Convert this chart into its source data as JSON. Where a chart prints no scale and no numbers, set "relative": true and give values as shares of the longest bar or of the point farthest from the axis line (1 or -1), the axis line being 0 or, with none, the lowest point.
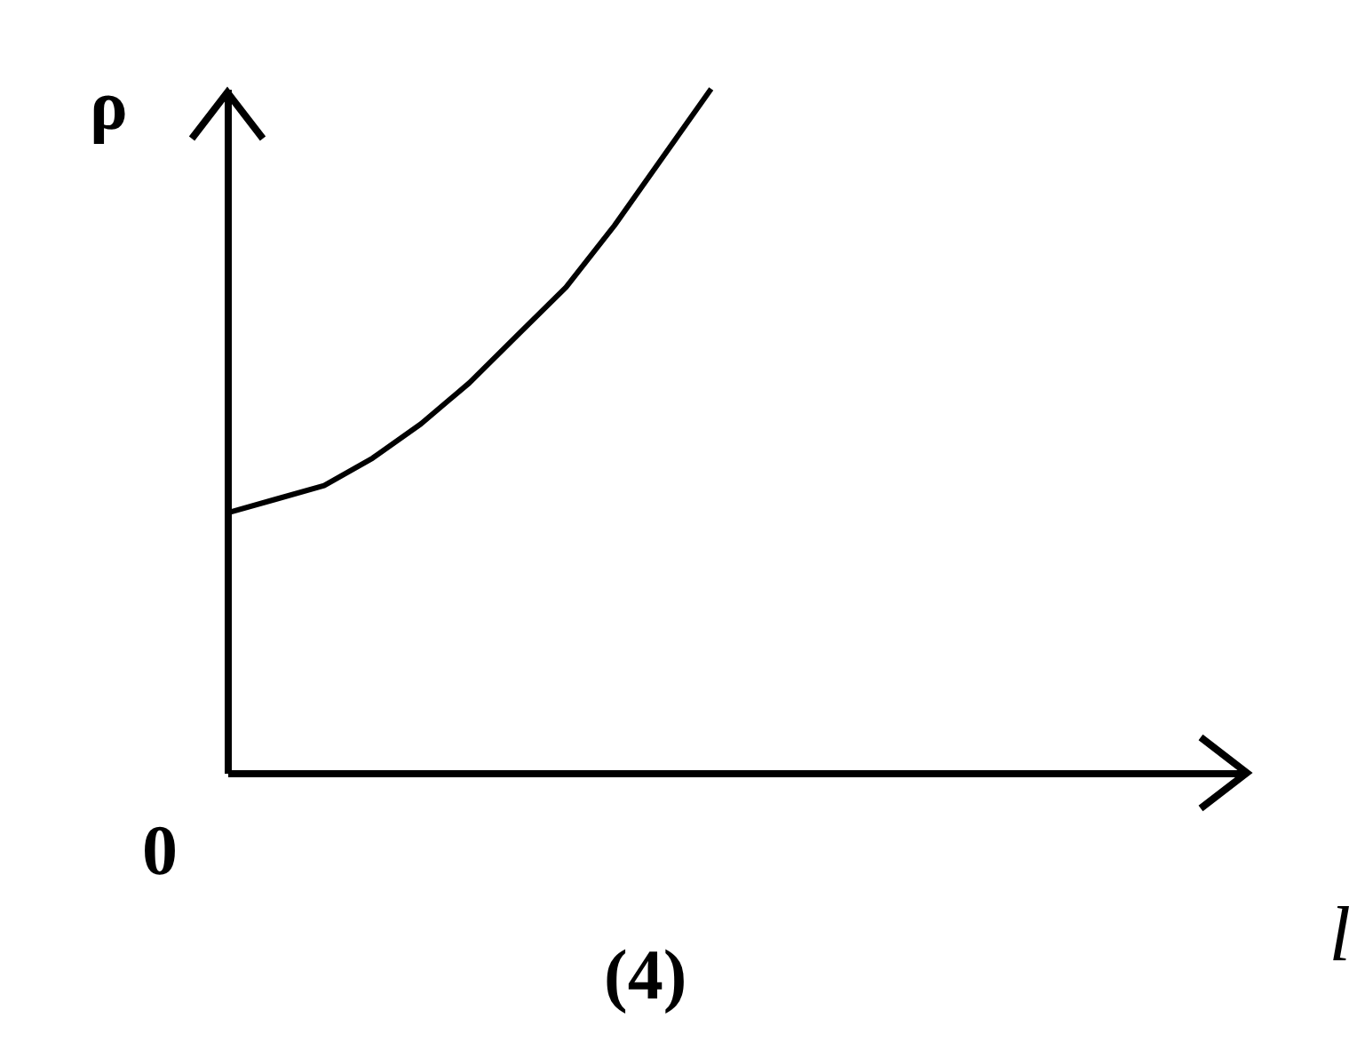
{
  "chart_data": {
    "type": "line",
    "relative": true,
    "xlabel": "l",
    "ylabel": "ρ",
    "annotations": [
      "0",
      "(4)"
    ],
    "categories": [
      null,
      null,
      null,
      null,
      null,
      null,
      null,
      null,
      null,
      null,
      null,
      null,
      null,
      null,
      null,
      null,
      null,
      null,
      null,
      null,
      null,
      null
    ],
    "series": [
      {
        "color": "#000000",
        "values": [
          0.38,
          0.4,
          0.42,
          0.46,
          0.51,
          0.57,
          0.64,
          0.71,
          0.8,
          0.9,
          1.0,
          null,
          null,
          null,
          null,
          null,
          null,
          null,
          null,
          null,
          null,
          null
        ]
      }
    ],
    "marker": "none",
    "line_style": "solid",
    "grid": false,
    "legend": false
  }
}
